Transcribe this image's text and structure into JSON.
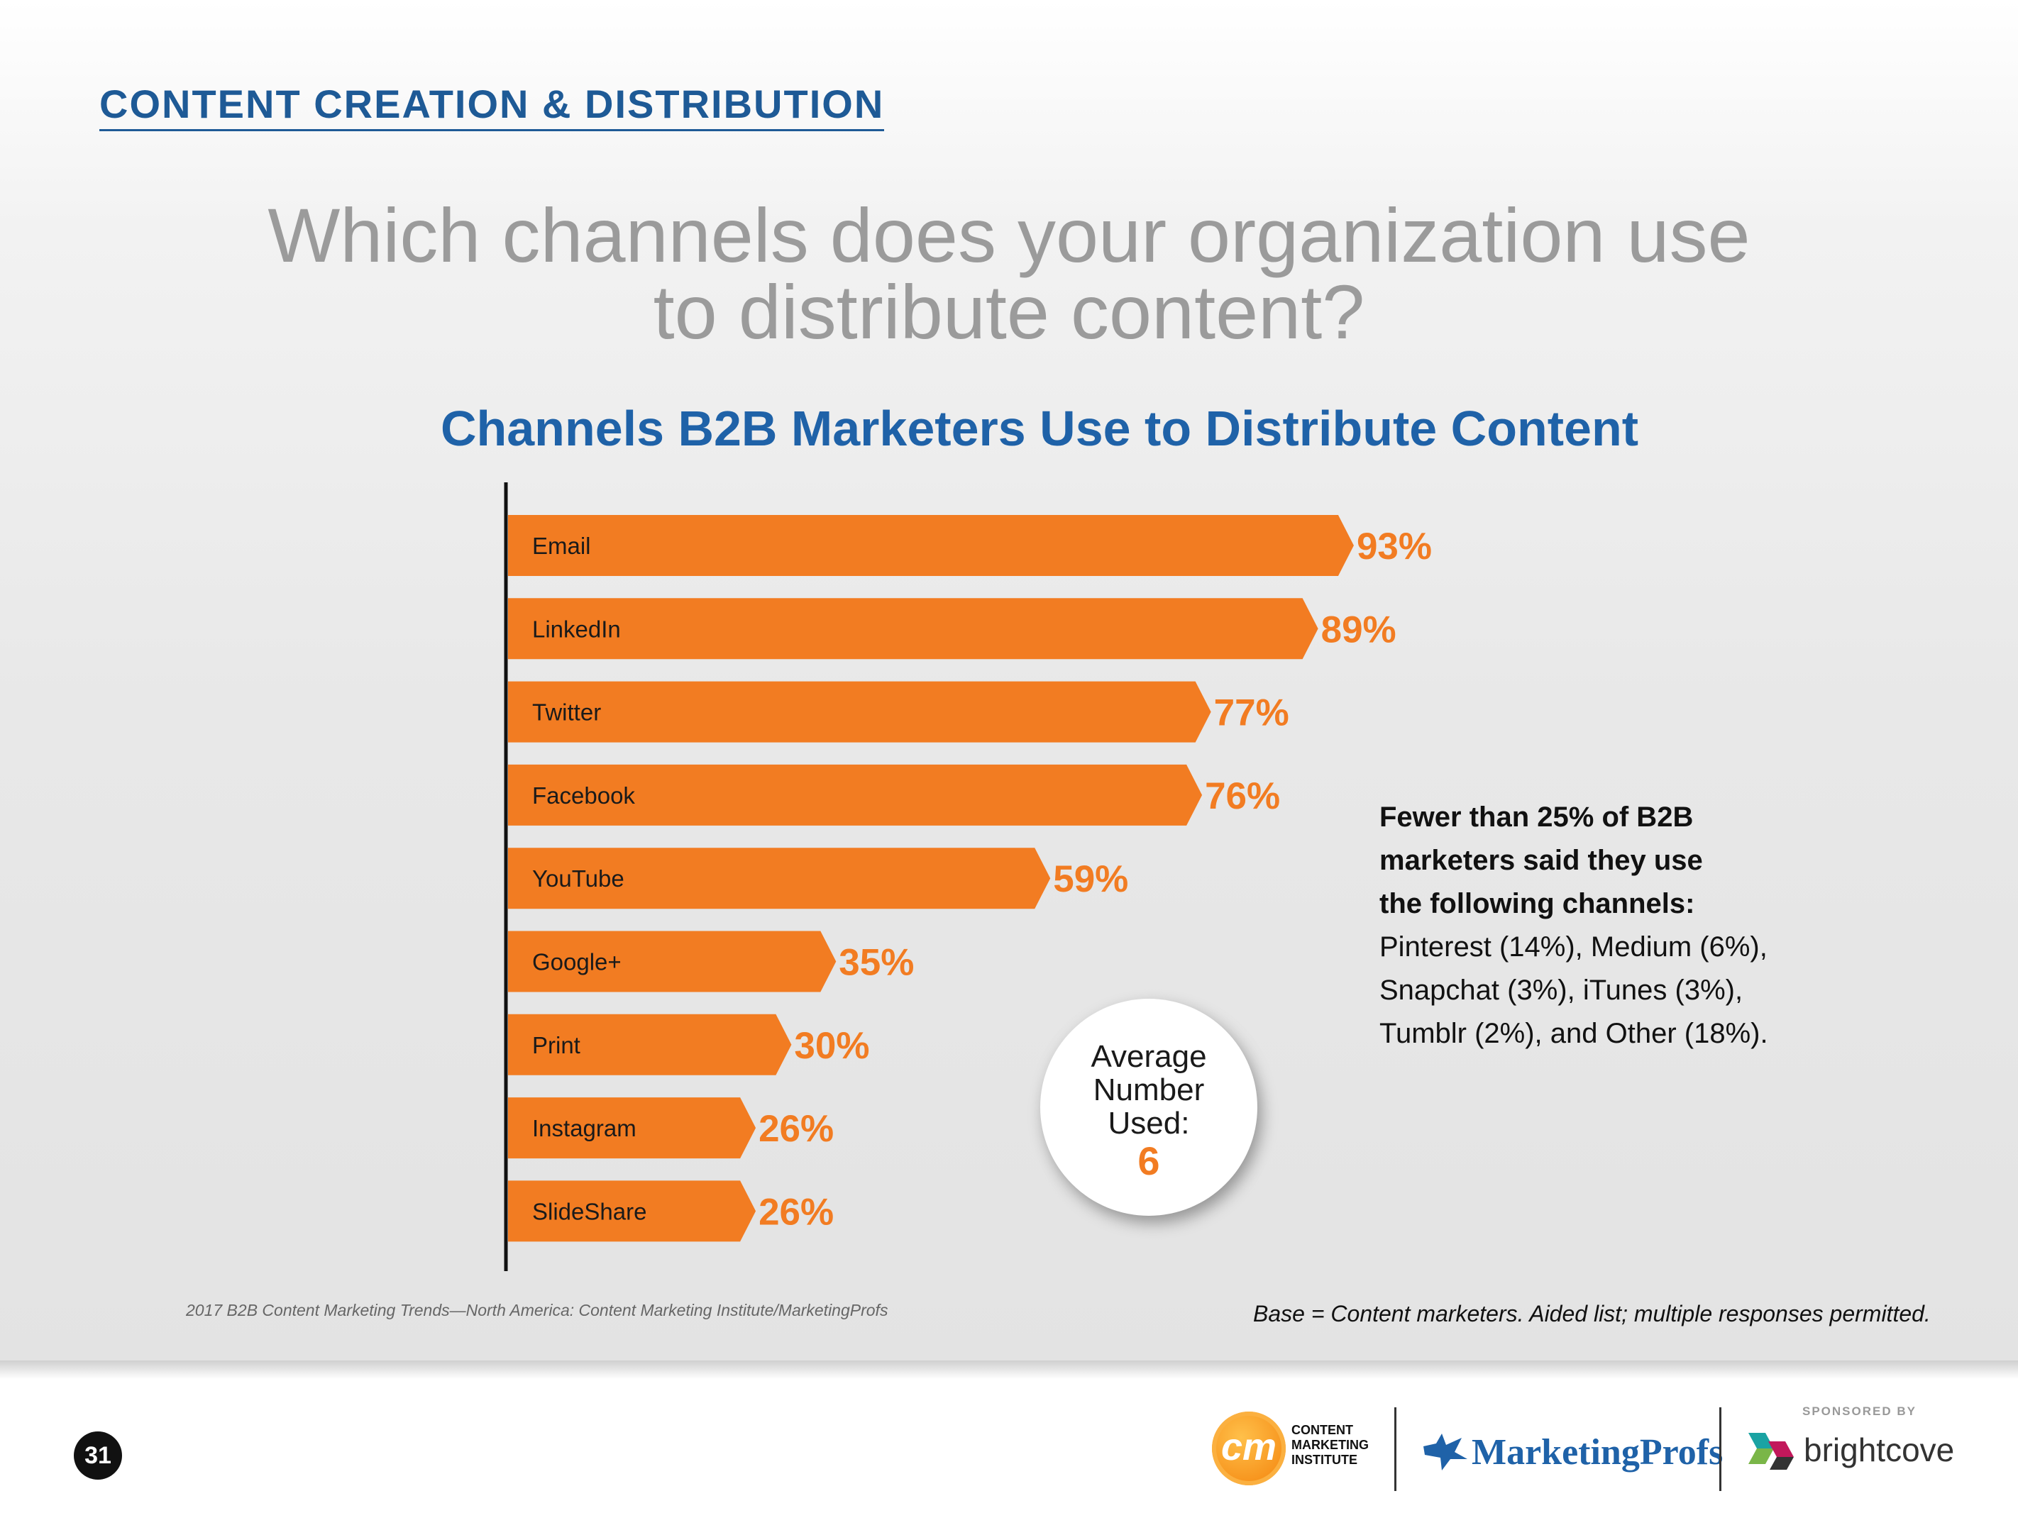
{
  "header": {
    "section_title": "CONTENT CREATION & DISTRIBUTION"
  },
  "question": {
    "line1": "Which channels does your organization use",
    "line2": "to distribute content?"
  },
  "chart_data": {
    "type": "bar",
    "orientation": "horizontal",
    "title": "Channels B2B Marketers Use to Distribute Content",
    "categories": [
      "Email",
      "LinkedIn",
      "Twitter",
      "Facebook",
      "YouTube",
      "Google+",
      "Print",
      "Instagram",
      "SlideShare"
    ],
    "values": [
      93,
      89,
      77,
      76,
      59,
      35,
      30,
      26,
      26
    ],
    "value_labels": [
      "93%",
      "89%",
      "77%",
      "76%",
      "59%",
      "35%",
      "30%",
      "26%",
      "26%"
    ],
    "unit": "%",
    "xlim": [
      0,
      100
    ],
    "bar_color": "#f27c22"
  },
  "note": {
    "bold_line1": "Fewer than 25% of B2B",
    "bold_line2": "marketers said they use",
    "bold_line3": "the following channels:",
    "line4": "Pinterest (14%), Medium (6%),",
    "line5": "Snapchat (3%), iTunes (3%),",
    "line6": "Tumblr (2%), and Other (18%)."
  },
  "average": {
    "label": "Average Number Used:",
    "value": "6"
  },
  "footer": {
    "source": "2017 B2B Content Marketing Trends—North America: Content Marketing Institute/MarketingProfs",
    "base": "Base = Content marketers. Aided list; multiple responses permitted.",
    "page_number": "31",
    "cmi_logo_mark": "cm",
    "cmi_line1": "CONTENT",
    "cmi_line2": "MARKETING",
    "cmi_line3": "INSTITUTE",
    "marketingprofs": "MarketingProfs",
    "sponsored_by": "SPONSORED BY",
    "brightcove": "brightcove"
  },
  "colors": {
    "accent_blue": "#1f62a8",
    "header_blue": "#1e5a96",
    "bar_orange": "#f27c22",
    "question_gray": "#9b9b9b"
  }
}
